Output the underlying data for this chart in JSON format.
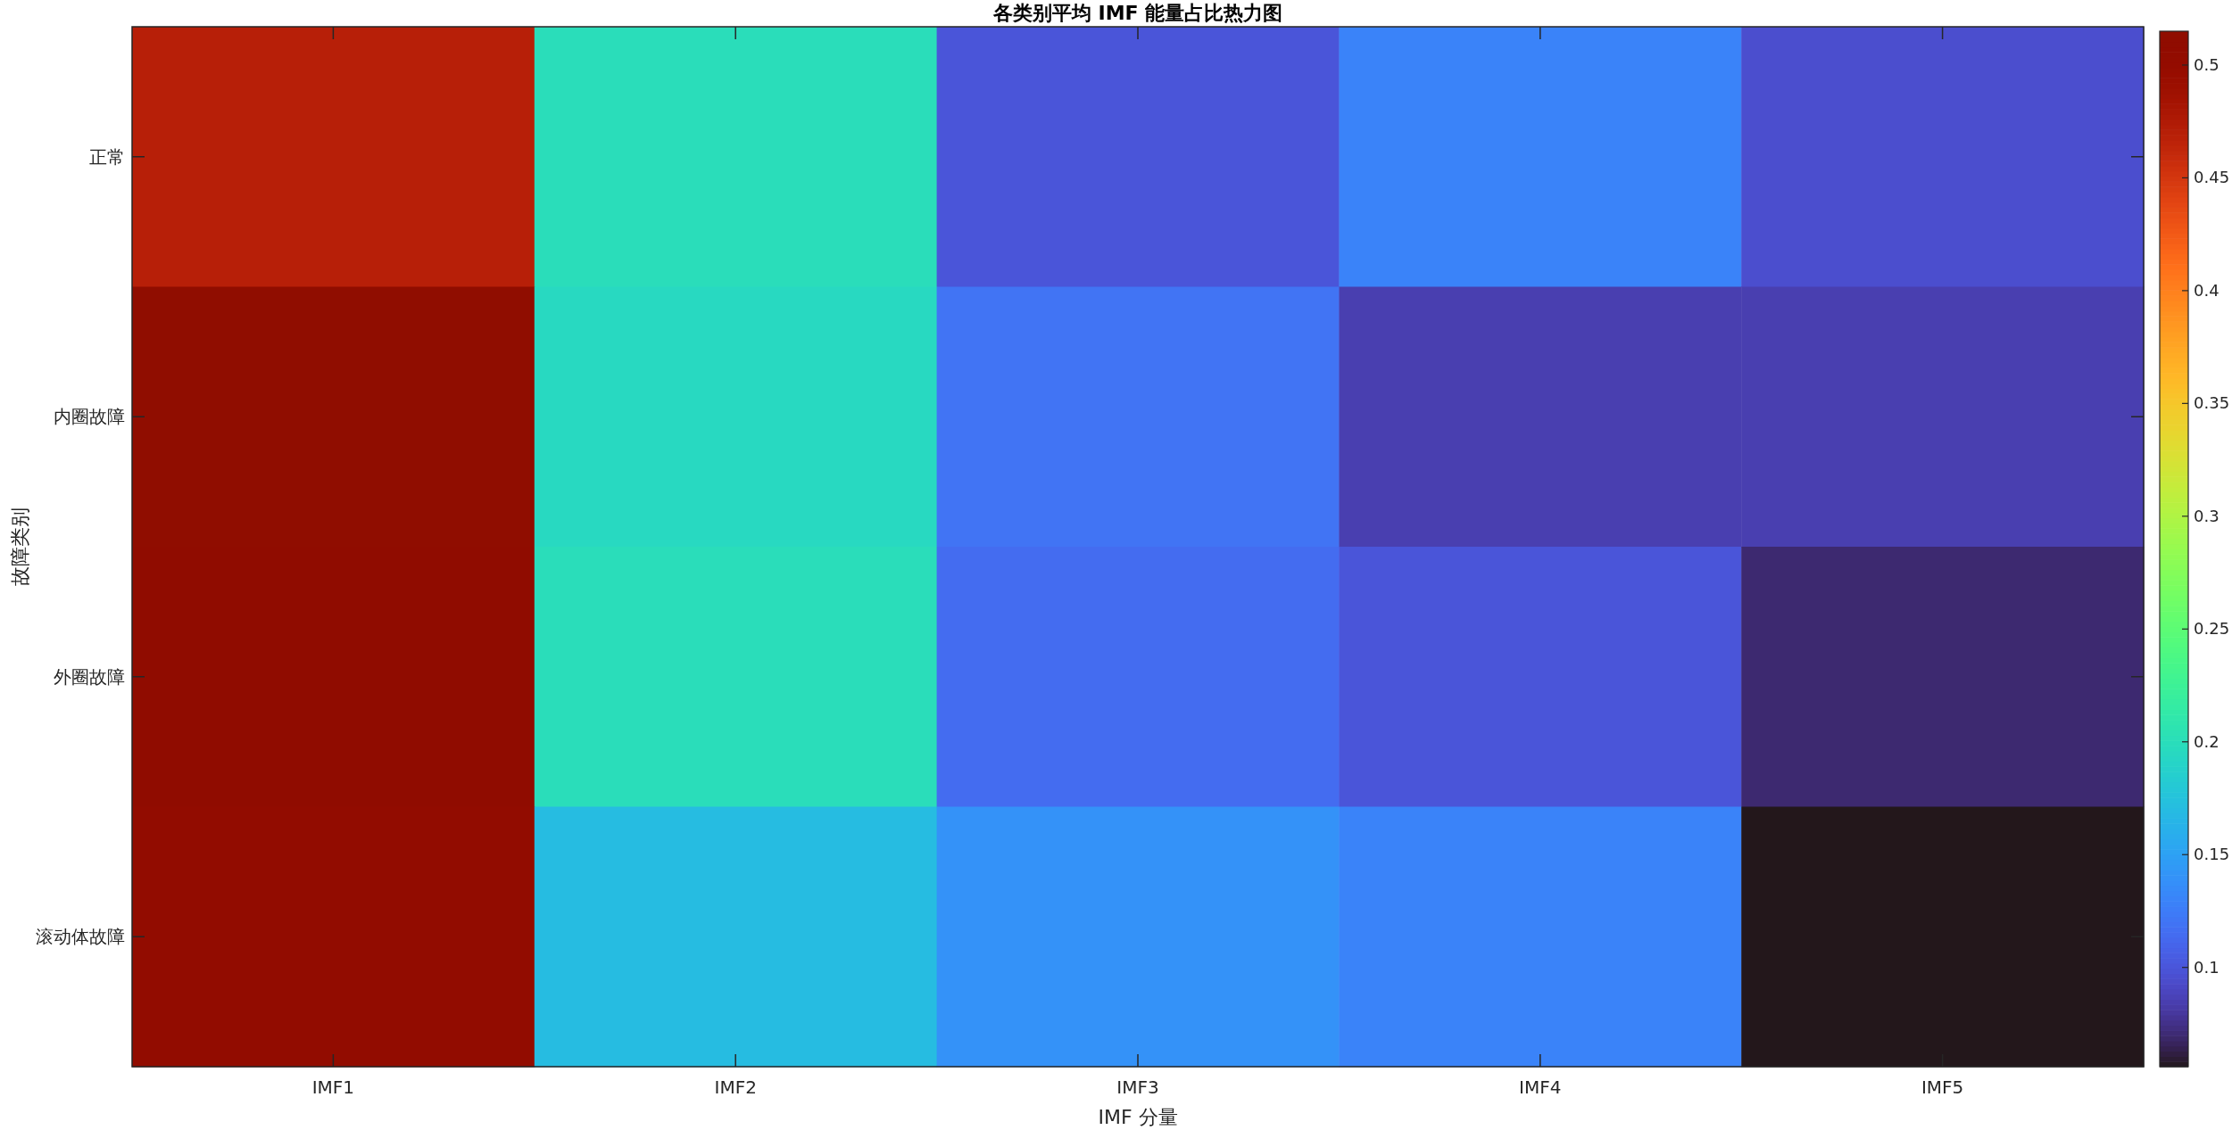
{
  "chart_data": {
    "type": "heatmap",
    "title": "各类别平均 IMF 能量占比热力图",
    "xlabel": "IMF 分量",
    "ylabel": "故障类别",
    "categories": [
      "IMF1",
      "IMF2",
      "IMF3",
      "IMF4",
      "IMF5"
    ],
    "y_categories": [
      "正常",
      "内圈故障",
      "外圈故障",
      "滚动体故障"
    ],
    "cells": [
      [
        0.47,
        0.2,
        0.1,
        0.13,
        0.095
      ],
      [
        0.515,
        0.195,
        0.12,
        0.085,
        0.085
      ],
      [
        0.51,
        0.2,
        0.115,
        0.1,
        0.07
      ],
      [
        0.505,
        0.17,
        0.14,
        0.13,
        0.056
      ]
    ],
    "clim": [
      0.056,
      0.515
    ],
    "cticks": [
      0.1,
      0.15,
      0.2,
      0.25,
      0.3,
      0.35,
      0.4,
      0.45,
      0.5
    ]
  }
}
